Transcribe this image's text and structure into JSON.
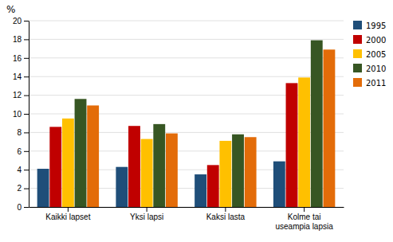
{
  "chart_data": {
    "type": "bar",
    "ylabel": "%",
    "categories": [
      "Kaikki lapset",
      "Yksi lapsi",
      "Kaksi lasta",
      "Kolme tai\nuseampia lapsia"
    ],
    "series": [
      {
        "name": "1995",
        "color": "#1F4E79",
        "values": [
          4.1,
          4.3,
          3.5,
          4.9
        ]
      },
      {
        "name": "2000",
        "color": "#C00000",
        "values": [
          8.6,
          8.7,
          4.5,
          13.3
        ]
      },
      {
        "name": "2005",
        "color": "#FFC000",
        "values": [
          9.5,
          7.3,
          7.1,
          13.9
        ]
      },
      {
        "name": "2010",
        "color": "#375623",
        "values": [
          11.6,
          8.9,
          7.8,
          17.9
        ]
      },
      {
        "name": "2011",
        "color": "#E36C09",
        "values": [
          10.9,
          7.9,
          7.5,
          16.9
        ]
      }
    ],
    "ylim": [
      0,
      20
    ],
    "yticks": [
      0,
      2,
      4,
      6,
      8,
      10,
      12,
      14,
      16,
      18,
      20
    ],
    "grid": true,
    "legend": "right"
  }
}
